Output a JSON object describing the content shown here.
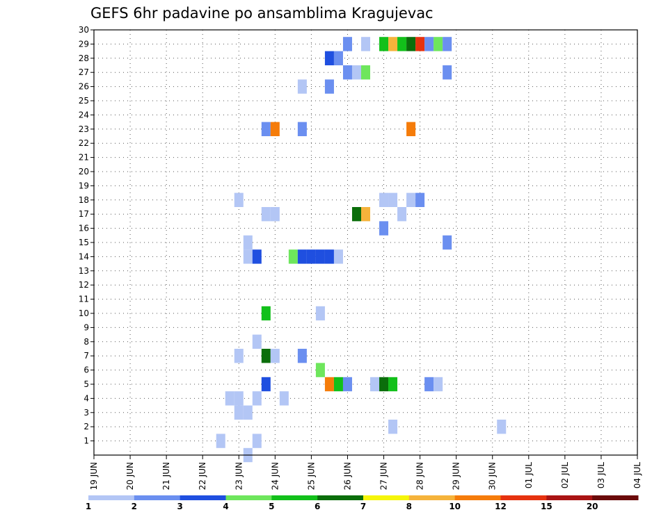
{
  "chart_data": {
    "type": "heatmap",
    "title": "GEFS 6hr padavine po ansamblima Kragujevac",
    "x_tick_labels": [
      "19 JUN",
      "20 JUN",
      "21 JUN",
      "22 JUN",
      "23 JUN",
      "24 JUN",
      "25 JUN",
      "26 JUN",
      "27 JUN",
      "28 JUN",
      "29 JUN",
      "30 JUN",
      "01 JUL",
      "02 JUL",
      "03 JUL",
      "04 JUL"
    ],
    "y_tick_labels": [
      "1",
      "2",
      "3",
      "4",
      "5",
      "6",
      "7",
      "8",
      "9",
      "10",
      "11",
      "12",
      "13",
      "14",
      "15",
      "16",
      "17",
      "18",
      "19",
      "20",
      "21",
      "22",
      "23",
      "24",
      "25",
      "26",
      "27",
      "28",
      "29",
      "30"
    ],
    "x_range_days": [
      0,
      15
    ],
    "y_range": [
      0,
      30
    ],
    "time_step_hours": 6,
    "grid": "dotted",
    "colorbar": {
      "boundaries": [
        "1",
        "2",
        "3",
        "4",
        "5",
        "6",
        "7",
        "8",
        "10",
        "12",
        "15",
        "20"
      ],
      "colors": [
        "#b3c6f5",
        "#6b8ff0",
        "#1f4fe0",
        "#6ee65c",
        "#12c01a",
        "#0b6e0b",
        "#f5f50a",
        "#f5b33b",
        "#f57c0a",
        "#e6320f",
        "#aa1414",
        "#6b0a0a"
      ]
    },
    "cells": [
      {
        "t": 3.75,
        "m": 4,
        "c": 0
      },
      {
        "t": 4.0,
        "m": 4,
        "c": 0
      },
      {
        "t": 3.5,
        "m": 1,
        "c": 0
      },
      {
        "t": 4.0,
        "m": 3,
        "c": 0
      },
      {
        "t": 4.25,
        "m": 3,
        "c": 0
      },
      {
        "t": 4.25,
        "m": 0,
        "c": 0
      },
      {
        "t": 4.0,
        "m": 7,
        "c": 0
      },
      {
        "t": 4.5,
        "m": 1,
        "c": 0
      },
      {
        "t": 4.5,
        "m": 4,
        "c": 0
      },
      {
        "t": 4.75,
        "m": 5,
        "c": 2
      },
      {
        "t": 4.5,
        "m": 8,
        "c": 0
      },
      {
        "t": 4.75,
        "m": 7,
        "c": 5
      },
      {
        "t": 5.0,
        "m": 7,
        "c": 0
      },
      {
        "t": 4.75,
        "m": 10,
        "c": 4
      },
      {
        "t": 5.25,
        "m": 4,
        "c": 0
      },
      {
        "t": 5.75,
        "m": 7,
        "c": 1
      },
      {
        "t": 6.25,
        "m": 6,
        "c": 3
      },
      {
        "t": 6.25,
        "m": 10,
        "c": 0
      },
      {
        "t": 6.5,
        "m": 5,
        "c": 8
      },
      {
        "t": 6.75,
        "m": 5,
        "c": 4
      },
      {
        "t": 7.0,
        "m": 5,
        "c": 1
      },
      {
        "t": 7.75,
        "m": 5,
        "c": 0
      },
      {
        "t": 8.0,
        "m": 5,
        "c": 5
      },
      {
        "t": 8.25,
        "m": 5,
        "c": 4
      },
      {
        "t": 8.25,
        "m": 2,
        "c": 0
      },
      {
        "t": 9.25,
        "m": 5,
        "c": 1
      },
      {
        "t": 9.5,
        "m": 5,
        "c": 0
      },
      {
        "t": 11.25,
        "m": 2,
        "c": 0
      },
      {
        "t": 4.25,
        "m": 14,
        "c": 0
      },
      {
        "t": 4.25,
        "m": 15,
        "c": 0
      },
      {
        "t": 4.5,
        "m": 14,
        "c": 2
      },
      {
        "t": 4.0,
        "m": 18,
        "c": 0
      },
      {
        "t": 4.75,
        "m": 17,
        "c": 0
      },
      {
        "t": 5.0,
        "m": 17,
        "c": 0
      },
      {
        "t": 5.5,
        "m": 14,
        "c": 3
      },
      {
        "t": 5.75,
        "m": 14,
        "c": 2
      },
      {
        "t": 6.0,
        "m": 14,
        "c": 2
      },
      {
        "t": 6.25,
        "m": 14,
        "c": 2
      },
      {
        "t": 6.5,
        "m": 14,
        "c": 2
      },
      {
        "t": 6.75,
        "m": 14,
        "c": 0
      },
      {
        "t": 7.25,
        "m": 17,
        "c": 5
      },
      {
        "t": 7.5,
        "m": 17,
        "c": 7
      },
      {
        "t": 8.0,
        "m": 16,
        "c": 1
      },
      {
        "t": 8.0,
        "m": 18,
        "c": 0
      },
      {
        "t": 8.25,
        "m": 18,
        "c": 0
      },
      {
        "t": 8.5,
        "m": 17,
        "c": 0
      },
      {
        "t": 8.75,
        "m": 18,
        "c": 0
      },
      {
        "t": 9.0,
        "m": 18,
        "c": 1
      },
      {
        "t": 9.75,
        "m": 15,
        "c": 1
      },
      {
        "t": 4.75,
        "m": 23,
        "c": 1
      },
      {
        "t": 5.0,
        "m": 23,
        "c": 8
      },
      {
        "t": 5.75,
        "m": 23,
        "c": 1
      },
      {
        "t": 8.75,
        "m": 23,
        "c": 8
      },
      {
        "t": 5.75,
        "m": 26,
        "c": 0
      },
      {
        "t": 6.5,
        "m": 26,
        "c": 1
      },
      {
        "t": 7.0,
        "m": 27,
        "c": 1
      },
      {
        "t": 7.25,
        "m": 27,
        "c": 0
      },
      {
        "t": 7.5,
        "m": 27,
        "c": 3
      },
      {
        "t": 9.75,
        "m": 27,
        "c": 1
      },
      {
        "t": 6.5,
        "m": 28,
        "c": 2
      },
      {
        "t": 6.75,
        "m": 28,
        "c": 1
      },
      {
        "t": 7.0,
        "m": 29,
        "c": 1
      },
      {
        "t": 7.5,
        "m": 29,
        "c": 0
      },
      {
        "t": 8.0,
        "m": 29,
        "c": 4
      },
      {
        "t": 8.25,
        "m": 29,
        "c": 7
      },
      {
        "t": 8.5,
        "m": 29,
        "c": 4
      },
      {
        "t": 8.75,
        "m": 29,
        "c": 5
      },
      {
        "t": 9.0,
        "m": 29,
        "c": 9
      },
      {
        "t": 9.25,
        "m": 29,
        "c": 1
      },
      {
        "t": 9.5,
        "m": 29,
        "c": 3
      },
      {
        "t": 9.75,
        "m": 29,
        "c": 1
      }
    ]
  }
}
